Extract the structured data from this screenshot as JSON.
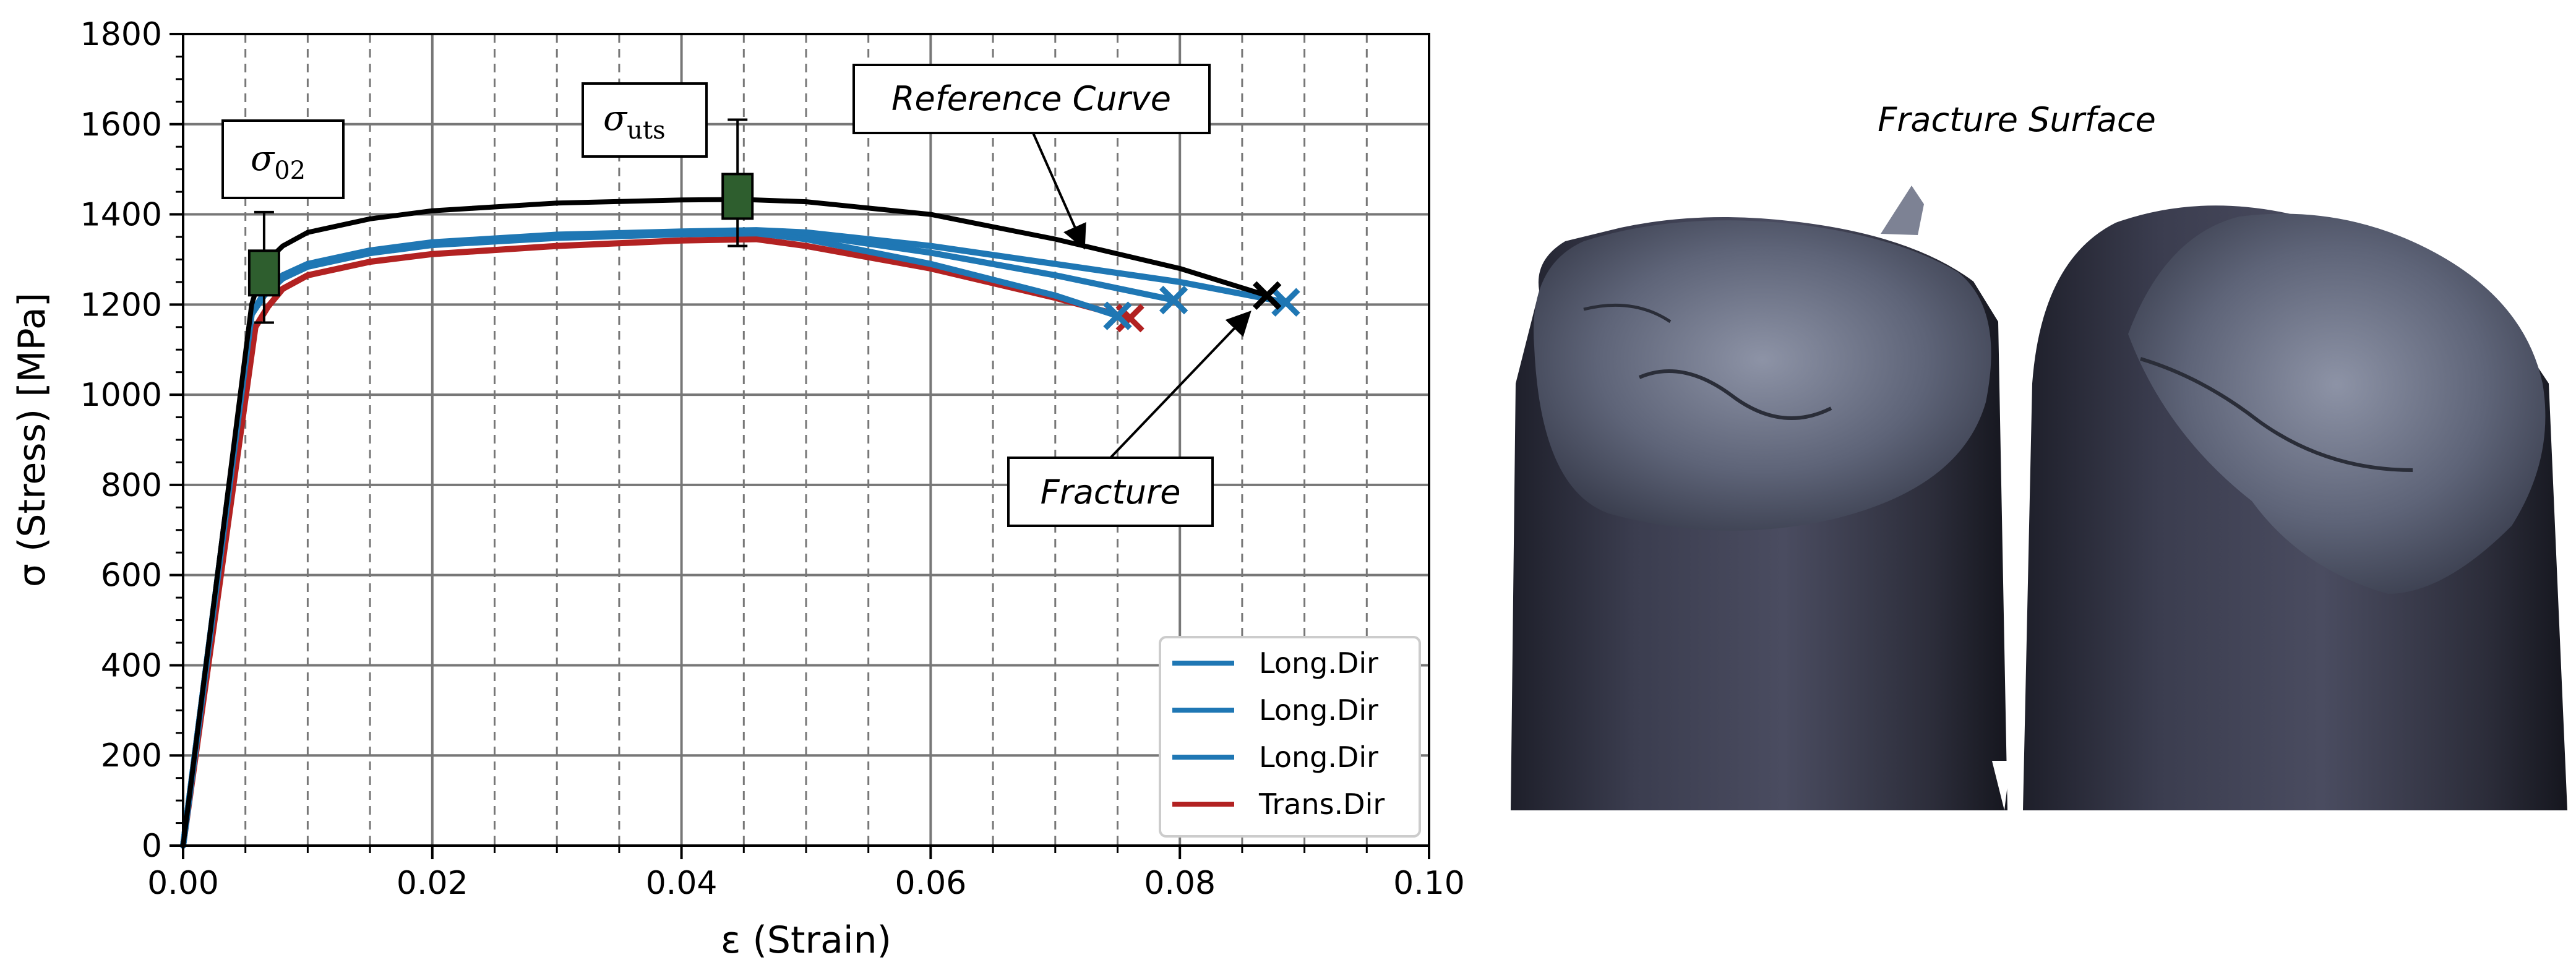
{
  "chart_data": {
    "type": "line",
    "xlabel": "ε (Strain)",
    "ylabel": "σ (Stress) [MPa]",
    "xlim": [
      0.0,
      0.1
    ],
    "ylim": [
      0,
      1800
    ],
    "x_ticks": [
      "0.00",
      "0.02",
      "0.04",
      "0.06",
      "0.08",
      "0.10"
    ],
    "y_ticks": [
      "0",
      "200",
      "400",
      "600",
      "800",
      "1000",
      "1200",
      "1400",
      "1600",
      "1800"
    ],
    "grid": "on (major solid, minor dashed)",
    "legend_placement": "lower right",
    "series": [
      {
        "name": "Long.Dir",
        "color": "#1f77b4",
        "x": [
          0.0,
          0.0055,
          0.0065,
          0.008,
          0.01,
          0.015,
          0.02,
          0.03,
          0.04,
          0.046,
          0.05,
          0.06,
          0.07,
          0.08,
          0.0885
        ],
        "y": [
          0,
          1180,
          1225,
          1265,
          1290,
          1320,
          1338,
          1355,
          1362,
          1365,
          1360,
          1330,
          1290,
          1250,
          1205
        ],
        "fracture": [
          0.0885,
          1205
        ]
      },
      {
        "name": "Long.Dir",
        "color": "#1f77b4",
        "x": [
          0.0,
          0.0055,
          0.0065,
          0.008,
          0.01,
          0.015,
          0.02,
          0.03,
          0.04,
          0.046,
          0.05,
          0.06,
          0.07,
          0.0795
        ],
        "y": [
          0,
          1180,
          1222,
          1262,
          1288,
          1318,
          1336,
          1352,
          1360,
          1362,
          1355,
          1315,
          1265,
          1210
        ],
        "fracture": [
          0.0795,
          1210
        ]
      },
      {
        "name": "Long.Dir",
        "color": "#1f77b4",
        "x": [
          0.0,
          0.0055,
          0.0065,
          0.008,
          0.01,
          0.015,
          0.02,
          0.03,
          0.04,
          0.046,
          0.05,
          0.06,
          0.07,
          0.075
        ],
        "y": [
          0,
          1178,
          1220,
          1258,
          1284,
          1314,
          1332,
          1348,
          1356,
          1358,
          1345,
          1290,
          1220,
          1175
        ],
        "fracture": [
          0.075,
          1175
        ]
      },
      {
        "name": "Trans.Dir",
        "color": "#b22222",
        "x": [
          0.0,
          0.0058,
          0.0068,
          0.008,
          0.01,
          0.015,
          0.02,
          0.03,
          0.04,
          0.046,
          0.05,
          0.06,
          0.07,
          0.076
        ],
        "y": [
          0,
          1150,
          1195,
          1235,
          1265,
          1295,
          1312,
          1330,
          1342,
          1345,
          1330,
          1280,
          1215,
          1170
        ],
        "fracture": [
          0.076,
          1170
        ]
      },
      {
        "name": "Reference Curve",
        "color": "#000000",
        "x": [
          0.0,
          0.0055,
          0.0065,
          0.008,
          0.01,
          0.015,
          0.02,
          0.03,
          0.04,
          0.045,
          0.05,
          0.06,
          0.07,
          0.08,
          0.087
        ],
        "y": [
          0,
          1200,
          1290,
          1330,
          1360,
          1390,
          1408,
          1425,
          1432,
          1433,
          1428,
          1400,
          1345,
          1280,
          1220
        ],
        "fracture": [
          0.087,
          1220
        ]
      }
    ],
    "markers": [
      {
        "label_main": "σ",
        "label_sub": "02",
        "x": 0.0065,
        "y": 1270,
        "err_low": 1160,
        "err_high": 1405,
        "color": "#2e5e2e"
      },
      {
        "label_main": "σ",
        "label_sub": "uts",
        "x": 0.0445,
        "y": 1440,
        "err_low": 1330,
        "err_high": 1610,
        "color": "#2e5e2e"
      }
    ],
    "annotations": [
      "Reference Curve",
      "Fracture"
    ],
    "legend": [
      "Long.Dir",
      "Long.Dir",
      "Long.Dir",
      "Trans.Dir"
    ]
  },
  "photo": {
    "title": "Fracture Surface"
  }
}
